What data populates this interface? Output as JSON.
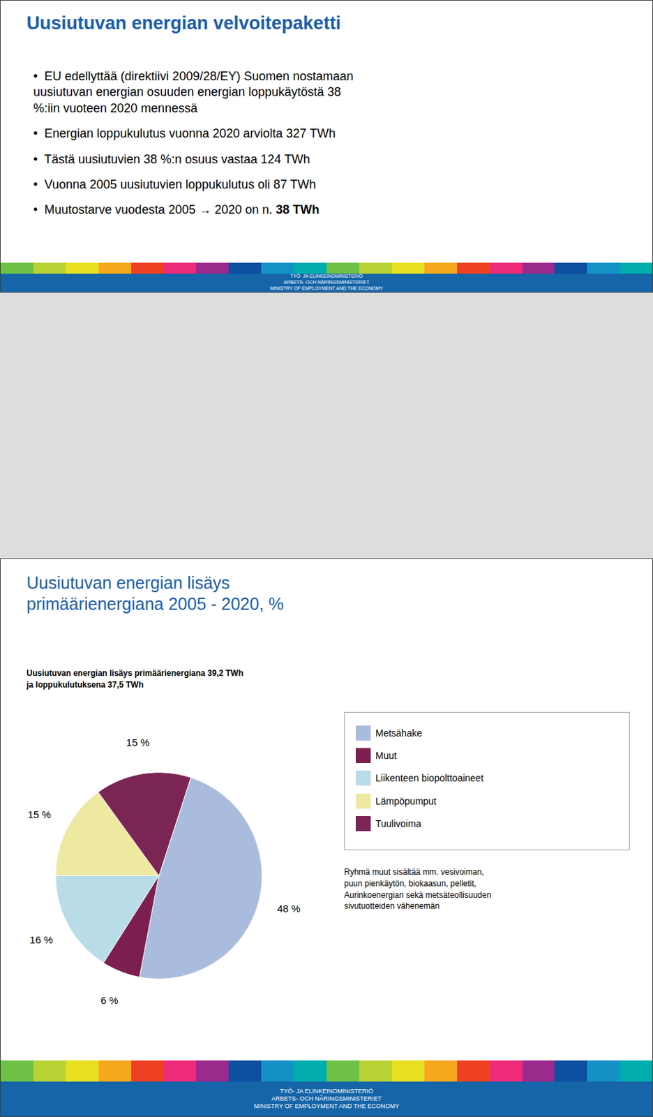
{
  "chart_data": {
    "type": "pie",
    "title": "Uusiutuvan energian lisäys\nprimäärienergiana 2005 - 2020, %",
    "subtitle": "Uusiutuvan energian lisäys primäärienergiana 39,2 TWh\nja loppukulutuksena 37,5 TWh",
    "categories": [
      "Metsähake",
      "Muut",
      "Liikenteen biopolttoaineet",
      "Lämpöpumput",
      "Tuulivoima"
    ],
    "values": [
      48,
      6,
      16,
      15,
      15
    ],
    "value_labels": [
      "48 %",
      "6 %",
      "16 %",
      "15 %",
      "15 %"
    ],
    "colors": [
      "#AABCDD",
      "#7B1F50",
      "#B8DCE8",
      "#EEE9A0",
      "#7B2555"
    ],
    "data_labels": true,
    "legend": "right",
    "annotations": [
      "Uusiutuvan energian velvoitepaketti",
      "•  EU edellyttää (direktiivi 2009/28/EY) Suomen nostamaan\nuusiutuvan energian osuuden energian loppukäytöstä 38\n%:iin vuoteen 2020 mennessä",
      "•  Energian loppukulutus vuonna 2020 arviolta 327 TWh",
      "•  Tästä uusiutuvien 38 %:n osuus vastaa 124 TWh",
      "•  Vuonna 2005 uusiutuvien loppukulutus oli 87 TWh",
      "•  Muutostarve vuodesta 2005 → 2020 on n. ",
      "38 TWh",
      "Ryhmä muut sisältää mm. vesivoiman,\npuun pienkäytön, biokaasun, pelletit,\nAurinkoenergian sekä metsäteollisuuden\nsivutuotteiden vähenemän",
      "TYÖ- JA ELINKEINOMINISTERIÖ\nARBETS- OCH NÄRINGSMINISTERIET\nMINISTRY OF EMPLOYMENT AND THE ECONOMY"
    ]
  }
}
